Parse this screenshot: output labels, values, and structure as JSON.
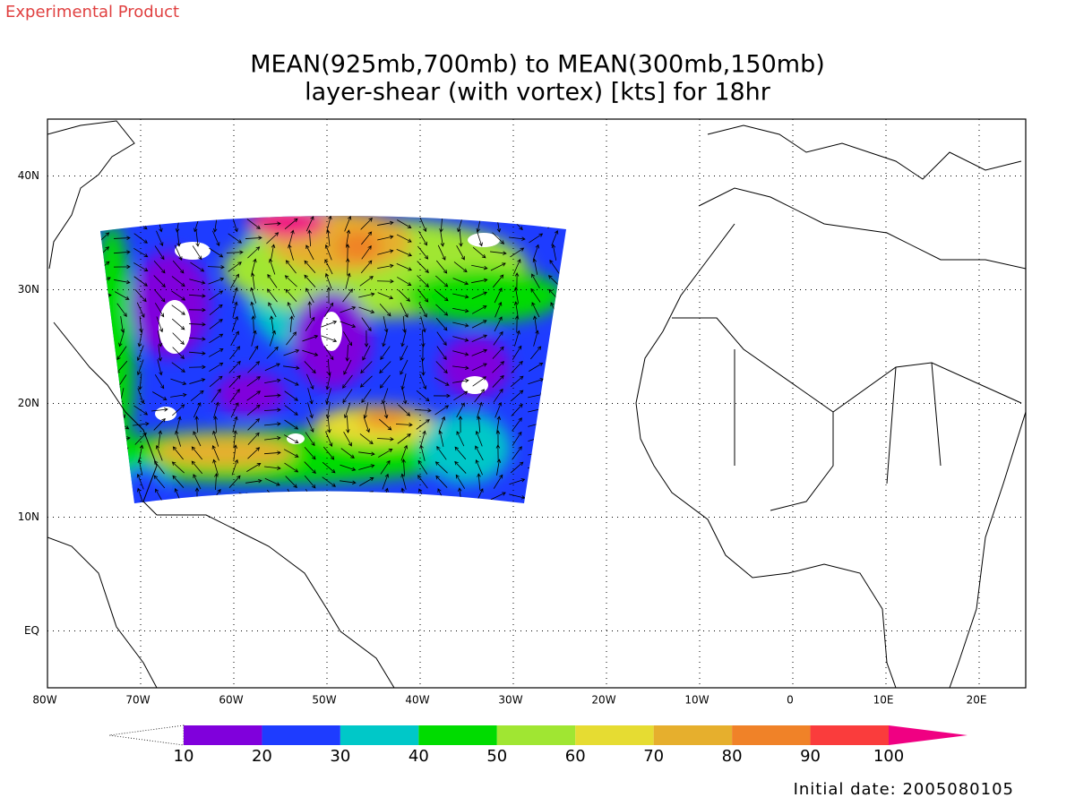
{
  "header": {
    "label": "Experimental Product"
  },
  "title": {
    "line1": "MEAN(925mb,700mb) to MEAN(300mb,150mb)",
    "line2": "layer-shear (with vortex) [kts] for 18hr"
  },
  "map": {
    "xlim": [
      -80,
      25
    ],
    "ylim": [
      -5,
      45
    ],
    "lon_ticks": [
      {
        "value": -80,
        "label": "80W"
      },
      {
        "value": -70,
        "label": "70W"
      },
      {
        "value": -60,
        "label": "60W"
      },
      {
        "value": -50,
        "label": "50W"
      },
      {
        "value": -40,
        "label": "40W"
      },
      {
        "value": -30,
        "label": "30W"
      },
      {
        "value": -20,
        "label": "20W"
      },
      {
        "value": -10,
        "label": "10W"
      },
      {
        "value": 0,
        "label": "0"
      },
      {
        "value": 10,
        "label": "10E"
      },
      {
        "value": 20,
        "label": "20E"
      }
    ],
    "lat_ticks": [
      {
        "value": 40,
        "label": "40N"
      },
      {
        "value": 30,
        "label": "30N"
      },
      {
        "value": 20,
        "label": "20N"
      },
      {
        "value": 10,
        "label": "10N"
      },
      {
        "value": 0,
        "label": "EQ"
      }
    ]
  },
  "colorbar": {
    "levels": [
      10,
      20,
      30,
      40,
      50,
      60,
      70,
      80,
      90,
      100
    ],
    "colors": [
      "#8000dc",
      "#1e3cff",
      "#00c8c8",
      "#00dc00",
      "#a0e632",
      "#e6dc32",
      "#e6af2d",
      "#f08228",
      "#fa3c3c",
      "#f00082"
    ]
  },
  "footer": {
    "label": "Initial date: 2005080105"
  }
}
